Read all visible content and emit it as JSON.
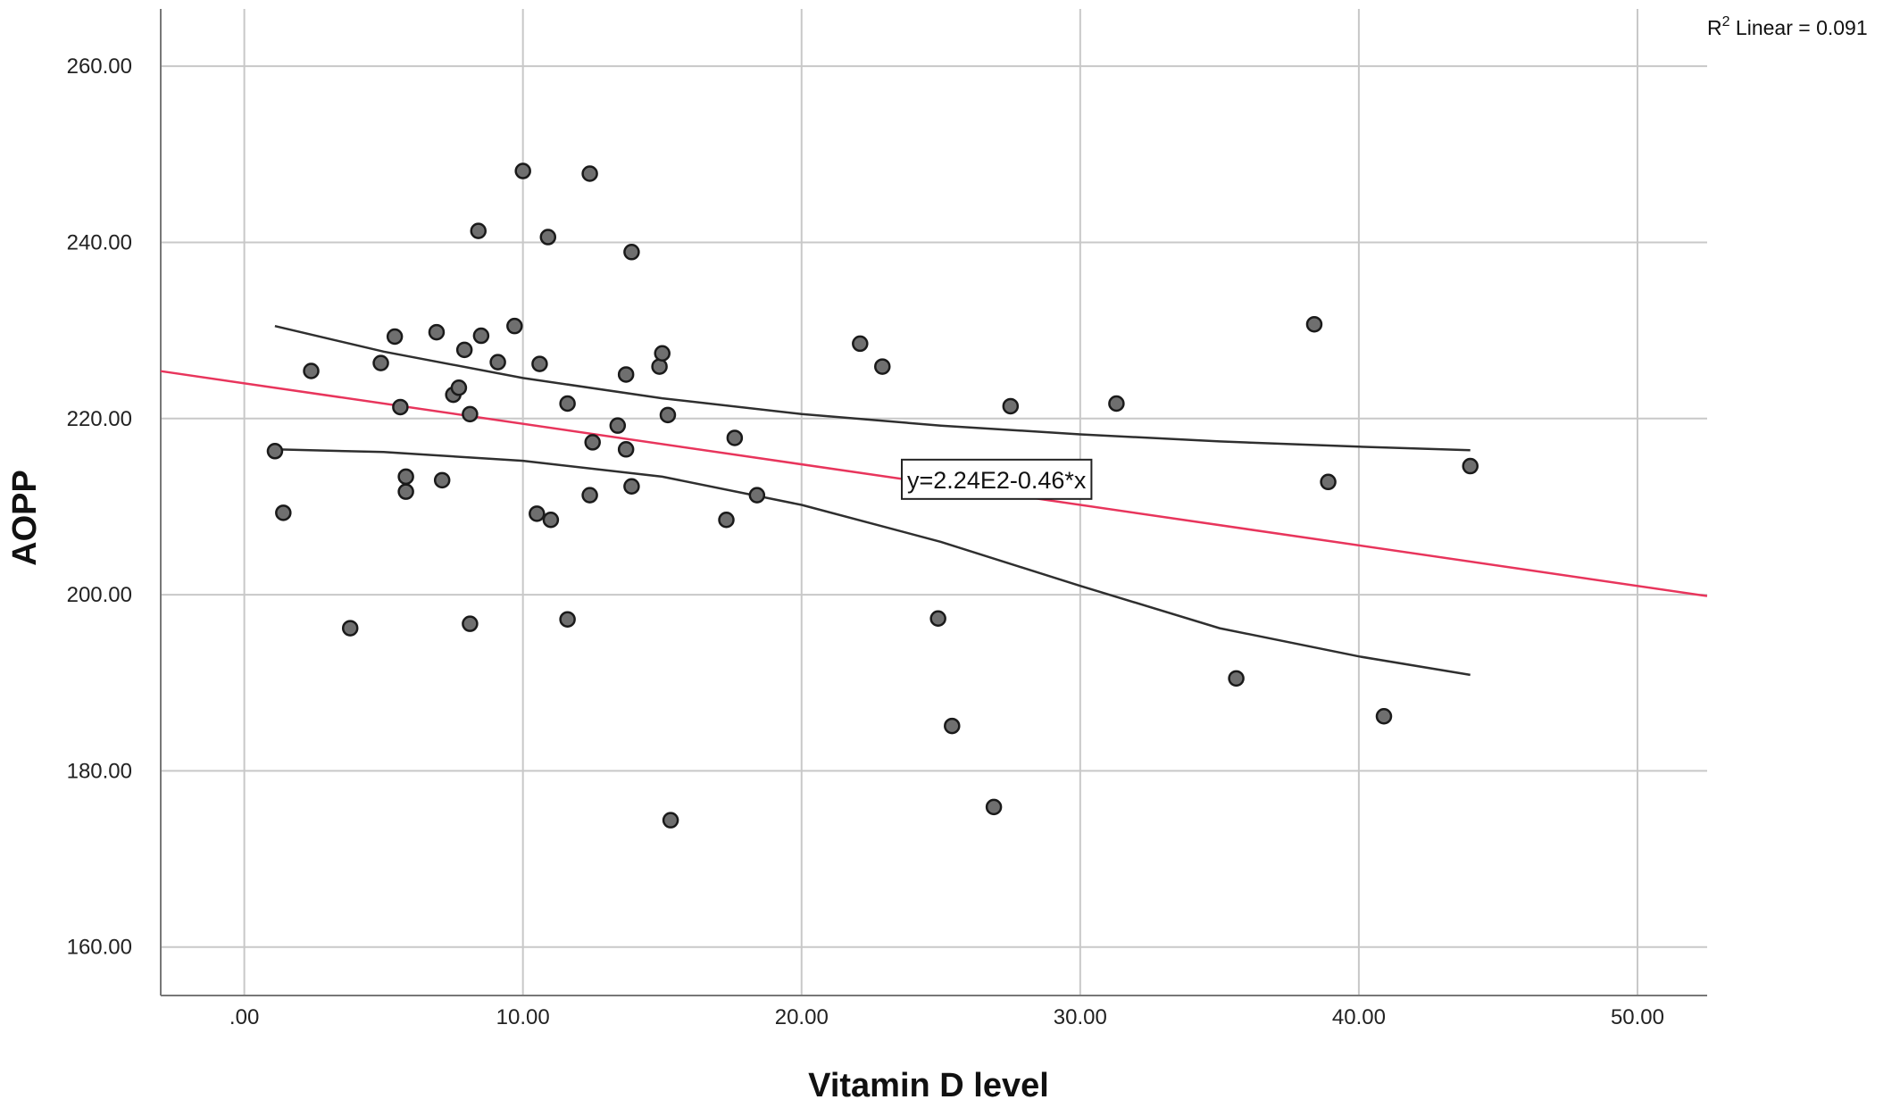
{
  "chart_data": {
    "type": "scatter",
    "xlabel": "Vitamin D level",
    "ylabel": "AOPP",
    "xlim": [
      -3,
      52.5
    ],
    "ylim": [
      154.5,
      266.5
    ],
    "xticks": [
      0,
      10,
      20,
      30,
      40,
      50
    ],
    "yticks": [
      160,
      180,
      200,
      220,
      240,
      260
    ],
    "xtick_labels": [
      ".00",
      "10.00",
      "20.00",
      "30.00",
      "40.00",
      "50.00"
    ],
    "ytick_labels": [
      "160.00",
      "180.00",
      "200.00",
      "220.00",
      "240.00",
      "260.00"
    ],
    "grid": true,
    "points": [
      {
        "x": 1.1,
        "y": 216.3
      },
      {
        "x": 1.4,
        "y": 209.3
      },
      {
        "x": 2.4,
        "y": 225.4
      },
      {
        "x": 3.8,
        "y": 196.2
      },
      {
        "x": 4.9,
        "y": 226.3
      },
      {
        "x": 5.4,
        "y": 229.3
      },
      {
        "x": 5.6,
        "y": 221.3
      },
      {
        "x": 5.8,
        "y": 213.4
      },
      {
        "x": 5.8,
        "y": 211.7
      },
      {
        "x": 6.9,
        "y": 229.8
      },
      {
        "x": 7.1,
        "y": 213.0
      },
      {
        "x": 7.5,
        "y": 222.7
      },
      {
        "x": 7.7,
        "y": 223.5
      },
      {
        "x": 7.9,
        "y": 227.8
      },
      {
        "x": 8.1,
        "y": 196.7
      },
      {
        "x": 8.1,
        "y": 220.5
      },
      {
        "x": 8.4,
        "y": 241.3
      },
      {
        "x": 8.5,
        "y": 229.4
      },
      {
        "x": 9.1,
        "y": 226.4
      },
      {
        "x": 9.7,
        "y": 230.5
      },
      {
        "x": 10.0,
        "y": 248.1
      },
      {
        "x": 10.5,
        "y": 209.2
      },
      {
        "x": 10.6,
        "y": 226.2
      },
      {
        "x": 10.9,
        "y": 240.6
      },
      {
        "x": 11.0,
        "y": 208.5
      },
      {
        "x": 11.6,
        "y": 197.2
      },
      {
        "x": 11.6,
        "y": 221.7
      },
      {
        "x": 12.4,
        "y": 247.8
      },
      {
        "x": 12.4,
        "y": 211.3
      },
      {
        "x": 12.5,
        "y": 217.3
      },
      {
        "x": 13.4,
        "y": 219.2
      },
      {
        "x": 13.7,
        "y": 225.0
      },
      {
        "x": 13.7,
        "y": 216.5
      },
      {
        "x": 13.9,
        "y": 238.9
      },
      {
        "x": 13.9,
        "y": 212.3
      },
      {
        "x": 14.9,
        "y": 225.9
      },
      {
        "x": 15.0,
        "y": 227.4
      },
      {
        "x": 15.2,
        "y": 220.4
      },
      {
        "x": 15.3,
        "y": 174.4
      },
      {
        "x": 17.3,
        "y": 208.5
      },
      {
        "x": 17.6,
        "y": 217.8
      },
      {
        "x": 18.4,
        "y": 211.3
      },
      {
        "x": 22.1,
        "y": 228.5
      },
      {
        "x": 22.9,
        "y": 225.9
      },
      {
        "x": 24.9,
        "y": 197.3
      },
      {
        "x": 25.4,
        "y": 185.1
      },
      {
        "x": 26.9,
        "y": 175.9
      },
      {
        "x": 27.5,
        "y": 221.4
      },
      {
        "x": 31.3,
        "y": 221.7
      },
      {
        "x": 35.6,
        "y": 190.5
      },
      {
        "x": 38.4,
        "y": 230.7
      },
      {
        "x": 38.9,
        "y": 212.8
      },
      {
        "x": 40.9,
        "y": 186.2
      },
      {
        "x": 44.0,
        "y": 214.6
      }
    ],
    "fit_line": {
      "intercept": 224.0,
      "slope": -0.46,
      "color": "#e8355c"
    },
    "ci_upper": [
      {
        "x": 1.1,
        "y": 230.5
      },
      {
        "x": 5.0,
        "y": 227.6
      },
      {
        "x": 10.0,
        "y": 224.6
      },
      {
        "x": 15.0,
        "y": 222.3
      },
      {
        "x": 20.0,
        "y": 220.5
      },
      {
        "x": 25.0,
        "y": 219.2
      },
      {
        "x": 30.0,
        "y": 218.2
      },
      {
        "x": 35.0,
        "y": 217.4
      },
      {
        "x": 40.0,
        "y": 216.8
      },
      {
        "x": 44.0,
        "y": 216.4
      }
    ],
    "ci_lower": [
      {
        "x": 1.1,
        "y": 216.5
      },
      {
        "x": 5.0,
        "y": 216.2
      },
      {
        "x": 10.0,
        "y": 215.2
      },
      {
        "x": 15.0,
        "y": 213.4
      },
      {
        "x": 20.0,
        "y": 210.2
      },
      {
        "x": 25.0,
        "y": 206.0
      },
      {
        "x": 30.0,
        "y": 201.0
      },
      {
        "x": 35.0,
        "y": 196.2
      },
      {
        "x": 40.0,
        "y": 193.0
      },
      {
        "x": 44.0,
        "y": 190.9
      }
    ],
    "equation_label": {
      "text": "y=2.24E2-0.46*x",
      "x": 27.0,
      "y": 213.0
    },
    "r2_label": {
      "base": "R",
      "sup": "2",
      "text": " Linear = 0.091"
    },
    "colors": {
      "point_fill": "#6f6f6f",
      "point_stroke": "#1a1a1a",
      "ci_line": "#2f2f2f",
      "grid": "#c8c8c8",
      "axis": "#777777"
    }
  }
}
